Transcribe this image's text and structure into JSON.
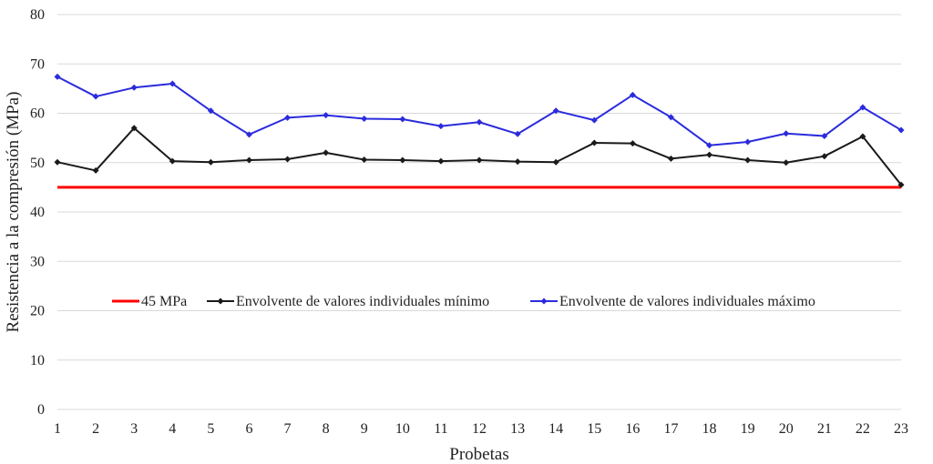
{
  "chart_data": {
    "type": "line",
    "title": "",
    "xlabel": "Probetas",
    "ylabel": "Resistencia a la compresión (MPa)",
    "ylim": [
      0,
      80
    ],
    "yticks": [
      0,
      10,
      20,
      30,
      40,
      50,
      60,
      70,
      80
    ],
    "categories": [
      "1",
      "2",
      "3",
      "4",
      "5",
      "6",
      "7",
      "8",
      "9",
      "10",
      "11",
      "12",
      "13",
      "14",
      "15",
      "16",
      "17",
      "18",
      "19",
      "20",
      "21",
      "22",
      "23"
    ],
    "grid": true,
    "legend_position": "center",
    "series": [
      {
        "name": "45 MPa",
        "color": "#ff0000",
        "marker": "none",
        "values": [
          45,
          45,
          45,
          45,
          45,
          45,
          45,
          45,
          45,
          45,
          45,
          45,
          45,
          45,
          45,
          45,
          45,
          45,
          45,
          45,
          45,
          45,
          45
        ]
      },
      {
        "name": "Envolvente de valores individuales mínimo",
        "color": "#1a1a1a",
        "marker": "diamond",
        "values": [
          50.1,
          48.4,
          57.0,
          50.3,
          50.1,
          50.5,
          50.7,
          52.0,
          50.6,
          50.5,
          50.3,
          50.5,
          50.2,
          50.1,
          54.0,
          53.9,
          50.8,
          51.6,
          50.5,
          50.0,
          51.3,
          55.3,
          45.5
        ]
      },
      {
        "name": "Envolvente de valores individuales máximo",
        "color": "#2b2bdd",
        "marker": "diamond",
        "values": [
          67.4,
          63.4,
          65.2,
          66.0,
          60.5,
          55.7,
          59.1,
          59.6,
          58.9,
          58.8,
          57.4,
          58.2,
          55.8,
          60.5,
          58.6,
          63.7,
          59.2,
          53.5,
          54.2,
          55.9,
          55.4,
          61.2,
          56.6
        ]
      }
    ]
  }
}
